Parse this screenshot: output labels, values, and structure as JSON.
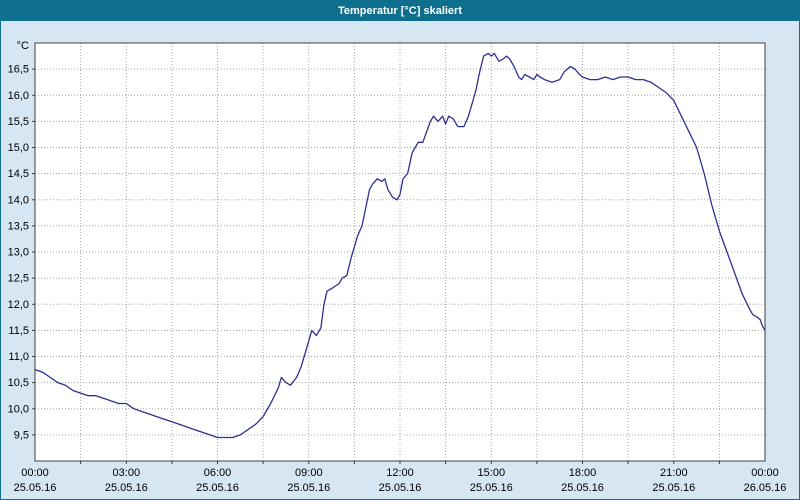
{
  "title": "Temperatur [°C] skaliert",
  "colors": {
    "title_bar": "#0d6e8e",
    "window_background": "#d6e6f2",
    "plot_background": "#ffffff",
    "line": "#2e3192",
    "grid": "#a6a6a6"
  },
  "chart_data": {
    "type": "line",
    "title": "Temperatur [°C] skaliert",
    "xlabel": "",
    "ylabel": "°C",
    "xlim": [
      0,
      24
    ],
    "ylim": [
      9.0,
      17.0
    ],
    "x_grid_step": 1.5,
    "grid": true,
    "legend": "none",
    "y_ticks": [
      {
        "value": 16.5,
        "label": "16,5"
      },
      {
        "value": 16.0,
        "label": "16,0"
      },
      {
        "value": 15.5,
        "label": "15,5"
      },
      {
        "value": 15.0,
        "label": "15,0"
      },
      {
        "value": 14.5,
        "label": "14,5"
      },
      {
        "value": 14.0,
        "label": "14,0"
      },
      {
        "value": 13.5,
        "label": "13,5"
      },
      {
        "value": 13.0,
        "label": "13,0"
      },
      {
        "value": 12.5,
        "label": "12,5"
      },
      {
        "value": 12.0,
        "label": "12,0"
      },
      {
        "value": 11.5,
        "label": "11,5"
      },
      {
        "value": 11.0,
        "label": "11,0"
      },
      {
        "value": 10.5,
        "label": "10,5"
      },
      {
        "value": 10.0,
        "label": "10,0"
      },
      {
        "value": 9.5,
        "label": "9,5"
      }
    ],
    "x_ticks": [
      {
        "hour": 0,
        "time": "00:00",
        "date": "25.05.16"
      },
      {
        "hour": 3,
        "time": "03:00",
        "date": "25.05.16"
      },
      {
        "hour": 6,
        "time": "06:00",
        "date": "25.05.16"
      },
      {
        "hour": 9,
        "time": "09:00",
        "date": "25.05.16"
      },
      {
        "hour": 12,
        "time": "12:00",
        "date": "25.05.16"
      },
      {
        "hour": 15,
        "time": "15:00",
        "date": "25.05.16"
      },
      {
        "hour": 18,
        "time": "18:00",
        "date": "25.05.16"
      },
      {
        "hour": 21,
        "time": "21:00",
        "date": "25.05.16"
      },
      {
        "hour": 24,
        "time": "00:00",
        "date": "26.05.16"
      }
    ],
    "series": [
      {
        "name": "Temperatur [°C] skaliert",
        "points": [
          [
            0.0,
            10.75
          ],
          [
            0.25,
            10.7
          ],
          [
            0.5,
            10.6
          ],
          [
            0.75,
            10.5
          ],
          [
            1.0,
            10.45
          ],
          [
            1.25,
            10.35
          ],
          [
            1.5,
            10.3
          ],
          [
            1.75,
            10.25
          ],
          [
            2.0,
            10.25
          ],
          [
            2.25,
            10.2
          ],
          [
            2.5,
            10.15
          ],
          [
            2.75,
            10.1
          ],
          [
            3.0,
            10.1
          ],
          [
            3.25,
            10.0
          ],
          [
            3.5,
            9.95
          ],
          [
            3.75,
            9.9
          ],
          [
            4.0,
            9.85
          ],
          [
            4.25,
            9.8
          ],
          [
            4.5,
            9.75
          ],
          [
            4.75,
            9.7
          ],
          [
            5.0,
            9.65
          ],
          [
            5.25,
            9.6
          ],
          [
            5.5,
            9.55
          ],
          [
            5.75,
            9.5
          ],
          [
            6.0,
            9.45
          ],
          [
            6.25,
            9.45
          ],
          [
            6.5,
            9.45
          ],
          [
            6.75,
            9.5
          ],
          [
            7.0,
            9.6
          ],
          [
            7.25,
            9.7
          ],
          [
            7.5,
            9.85
          ],
          [
            7.75,
            10.1
          ],
          [
            8.0,
            10.4
          ],
          [
            8.1,
            10.6
          ],
          [
            8.25,
            10.5
          ],
          [
            8.4,
            10.45
          ],
          [
            8.6,
            10.6
          ],
          [
            8.75,
            10.8
          ],
          [
            9.0,
            11.3
          ],
          [
            9.1,
            11.5
          ],
          [
            9.25,
            11.4
          ],
          [
            9.4,
            11.55
          ],
          [
            9.5,
            12.0
          ],
          [
            9.6,
            12.25
          ],
          [
            9.75,
            12.3
          ],
          [
            10.0,
            12.4
          ],
          [
            10.1,
            12.5
          ],
          [
            10.25,
            12.55
          ],
          [
            10.4,
            12.9
          ],
          [
            10.5,
            13.1
          ],
          [
            10.6,
            13.3
          ],
          [
            10.75,
            13.5
          ],
          [
            11.0,
            14.2
          ],
          [
            11.1,
            14.3
          ],
          [
            11.25,
            14.4
          ],
          [
            11.4,
            14.35
          ],
          [
            11.5,
            14.4
          ],
          [
            11.6,
            14.2
          ],
          [
            11.75,
            14.05
          ],
          [
            11.9,
            14.0
          ],
          [
            12.0,
            14.1
          ],
          [
            12.1,
            14.4
          ],
          [
            12.25,
            14.5
          ],
          [
            12.4,
            14.9
          ],
          [
            12.5,
            15.0
          ],
          [
            12.6,
            15.1
          ],
          [
            12.75,
            15.1
          ],
          [
            13.0,
            15.5
          ],
          [
            13.1,
            15.6
          ],
          [
            13.25,
            15.5
          ],
          [
            13.4,
            15.6
          ],
          [
            13.5,
            15.45
          ],
          [
            13.6,
            15.6
          ],
          [
            13.75,
            15.55
          ],
          [
            13.9,
            15.4
          ],
          [
            14.0,
            15.4
          ],
          [
            14.1,
            15.4
          ],
          [
            14.25,
            15.6
          ],
          [
            14.4,
            15.9
          ],
          [
            14.5,
            16.1
          ],
          [
            14.6,
            16.4
          ],
          [
            14.75,
            16.75
          ],
          [
            14.9,
            16.8
          ],
          [
            15.0,
            16.75
          ],
          [
            15.1,
            16.8
          ],
          [
            15.25,
            16.65
          ],
          [
            15.4,
            16.7
          ],
          [
            15.5,
            16.75
          ],
          [
            15.6,
            16.7
          ],
          [
            15.75,
            16.55
          ],
          [
            15.9,
            16.35
          ],
          [
            16.0,
            16.3
          ],
          [
            16.1,
            16.4
          ],
          [
            16.25,
            16.35
          ],
          [
            16.4,
            16.3
          ],
          [
            16.5,
            16.4
          ],
          [
            16.6,
            16.35
          ],
          [
            16.75,
            16.3
          ],
          [
            17.0,
            16.25
          ],
          [
            17.25,
            16.3
          ],
          [
            17.4,
            16.45
          ],
          [
            17.5,
            16.5
          ],
          [
            17.6,
            16.55
          ],
          [
            17.75,
            16.5
          ],
          [
            17.9,
            16.4
          ],
          [
            18.0,
            16.35
          ],
          [
            18.25,
            16.3
          ],
          [
            18.5,
            16.3
          ],
          [
            18.75,
            16.35
          ],
          [
            19.0,
            16.3
          ],
          [
            19.25,
            16.35
          ],
          [
            19.5,
            16.35
          ],
          [
            19.75,
            16.3
          ],
          [
            20.0,
            16.3
          ],
          [
            20.25,
            16.25
          ],
          [
            20.5,
            16.15
          ],
          [
            20.75,
            16.05
          ],
          [
            21.0,
            15.9
          ],
          [
            21.25,
            15.6
          ],
          [
            21.5,
            15.3
          ],
          [
            21.75,
            15.0
          ],
          [
            22.0,
            14.5
          ],
          [
            22.25,
            13.9
          ],
          [
            22.5,
            13.4
          ],
          [
            22.75,
            13.0
          ],
          [
            23.0,
            12.6
          ],
          [
            23.25,
            12.2
          ],
          [
            23.5,
            11.9
          ],
          [
            23.6,
            11.8
          ],
          [
            23.75,
            11.75
          ],
          [
            23.85,
            11.7
          ],
          [
            23.9,
            11.6
          ],
          [
            24.0,
            11.5
          ]
        ]
      }
    ]
  }
}
